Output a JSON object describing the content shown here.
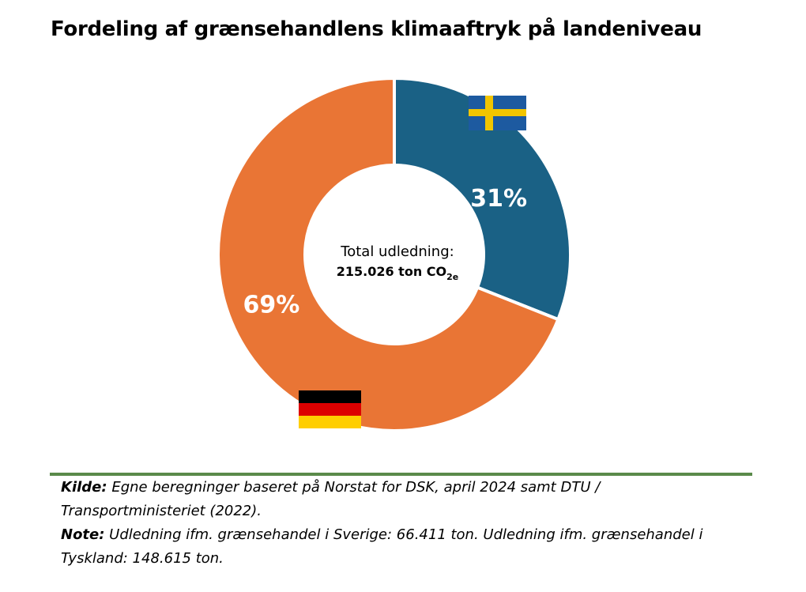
{
  "title": "Fordeling af grænsehandlens klimaaftryk på landeniveau",
  "chart_data": {
    "type": "pie",
    "title": "Fordeling af grænsehandlens klimaaftryk på landeniveau",
    "categories": [
      "Sverige",
      "Tyskland"
    ],
    "values": [
      31,
      69
    ],
    "labels": [
      "31%",
      "69%"
    ],
    "colors": [
      "#1a6185",
      "#e97535"
    ],
    "center_text_line1": "Total udledning:",
    "center_text_line2": "215.026 ton CO",
    "center_text_line2_sub": "2e",
    "flags": [
      "sweden-flag-icon",
      "germany-flag-icon"
    ]
  },
  "footer": {
    "source_label": "Kilde:",
    "source_text": " Egne beregninger baseret på Norstat for DSK, april 2024 samt DTU / Transportministeriet (2022).",
    "note_label": "Note:",
    "note_text": " Udledning ifm. grænsehandel i Sverige: 66.411 ton. Udledning ifm. grænsehandel i Tyskland: 148.615 ton."
  },
  "colors": {
    "divider": "#5a8a4a"
  }
}
